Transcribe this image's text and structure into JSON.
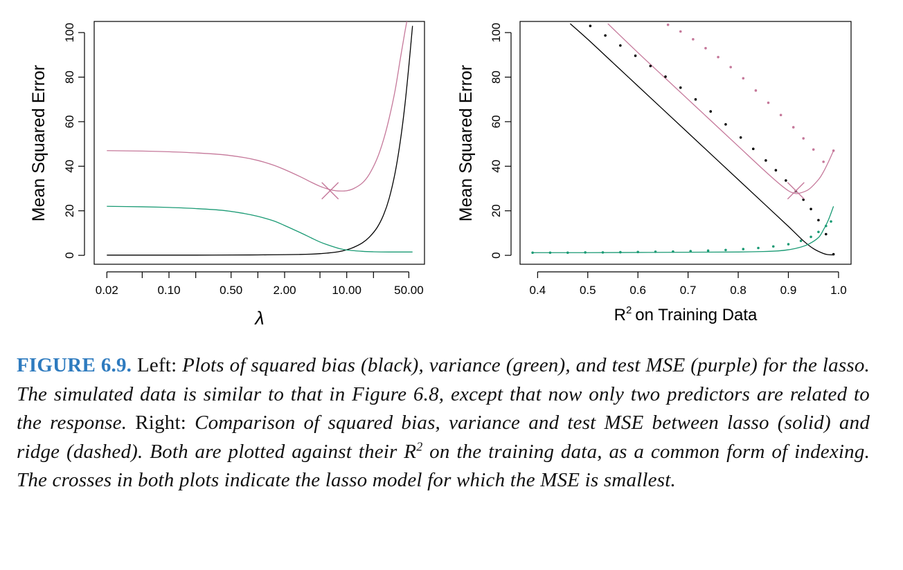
{
  "colors": {
    "bias": "#000000",
    "variance": "#1a9a74",
    "mse": "#c5789a",
    "caption_label": "#2e7bbf"
  },
  "chart_data": [
    {
      "type": "line",
      "panel": "left",
      "xscale": "log",
      "xlabel": "λ",
      "ylabel": "Mean Squared Error",
      "xlim": [
        0.0144,
        75
      ],
      "ylim": [
        -4,
        105
      ],
      "x_ticks": [
        0.02,
        0.05,
        0.1,
        0.2,
        0.5,
        1.0,
        2.0,
        5.0,
        10.0,
        20.0,
        50.0
      ],
      "x_tick_labels": [
        "0.02",
        "",
        "0.10",
        "",
        "0.50",
        "",
        "2.00",
        "",
        "10.00",
        "",
        "50.00"
      ],
      "y_ticks": [
        0,
        20,
        40,
        60,
        80,
        100
      ],
      "y_tick_labels": [
        "0",
        "20",
        "40",
        "60",
        "80",
        "100"
      ],
      "series": [
        {
          "name": "squared bias",
          "color_key": "bias",
          "style": "solid",
          "x": [
            0.02,
            0.05,
            0.1,
            0.2,
            0.5,
            1,
            2,
            3,
            4,
            5,
            6,
            8,
            10,
            12,
            15,
            18,
            22,
            26,
            30,
            35,
            40,
            45,
            50,
            55
          ],
          "y": [
            0.1,
            0.1,
            0.1,
            0.1,
            0.15,
            0.2,
            0.3,
            0.4,
            0.55,
            0.75,
            1.0,
            1.6,
            2.5,
            3.6,
            5.6,
            8.2,
            12.5,
            18.2,
            25.5,
            37.0,
            51.0,
            67.0,
            85.0,
            103.0
          ]
        },
        {
          "name": "variance",
          "color_key": "variance",
          "style": "solid",
          "x": [
            0.02,
            0.05,
            0.1,
            0.2,
            0.4,
            0.7,
            1,
            1.5,
            2,
            3,
            4,
            5,
            6,
            8,
            10,
            15,
            20,
            30,
            55
          ],
          "y": [
            22.0,
            21.8,
            21.5,
            21.0,
            20.2,
            18.8,
            17.5,
            15.5,
            13.4,
            10.2,
            7.8,
            6.0,
            4.8,
            3.2,
            2.4,
            1.8,
            1.6,
            1.5,
            1.5
          ]
        },
        {
          "name": "test MSE",
          "color_key": "mse",
          "style": "solid",
          "x": [
            0.02,
            0.05,
            0.1,
            0.2,
            0.4,
            0.7,
            1,
            1.5,
            2,
            3,
            4,
            5,
            6,
            7,
            8,
            10,
            12,
            15,
            18,
            22,
            26,
            30,
            35,
            40,
            45,
            48
          ],
          "y": [
            47.0,
            46.8,
            46.5,
            46.0,
            45.2,
            43.9,
            42.6,
            40.5,
            38.5,
            35.3,
            32.8,
            31.0,
            29.9,
            29.2,
            28.9,
            29.0,
            30.0,
            32.5,
            36.5,
            43.5,
            52.0,
            61.5,
            74.0,
            88.0,
            100.0,
            106.0
          ]
        }
      ],
      "markers": [
        {
          "type": "cross",
          "x": 6.5,
          "y": 29.0,
          "color_key": "mse",
          "label": "min MSE"
        }
      ]
    },
    {
      "type": "line",
      "panel": "right",
      "xlabel": "on Training Data",
      "xlabel_prefix": "R",
      "xlabel_sup": "2",
      "ylabel": "Mean Squared Error",
      "xlim": [
        0.365,
        1.025
      ],
      "ylim": [
        -4,
        105
      ],
      "x_ticks": [
        0.4,
        0.5,
        0.6,
        0.7,
        0.8,
        0.9,
        1.0
      ],
      "x_tick_labels": [
        "0.4",
        "0.5",
        "0.6",
        "0.7",
        "0.8",
        "0.9",
        "1.0"
      ],
      "y_ticks": [
        0,
        20,
        40,
        60,
        80,
        100
      ],
      "y_tick_labels": [
        "0",
        "20",
        "40",
        "60",
        "80",
        "100"
      ],
      "series": [
        {
          "name": "lasso squared bias",
          "color_key": "bias",
          "style": "solid",
          "x": [
            0.465,
            0.5,
            0.55,
            0.6,
            0.65,
            0.7,
            0.75,
            0.8,
            0.85,
            0.9,
            0.93,
            0.95,
            0.97,
            0.98,
            0.99
          ],
          "y": [
            104.0,
            97.0,
            86.5,
            76.0,
            65.5,
            55.0,
            44.5,
            34.0,
            23.5,
            13.0,
            6.5,
            3.0,
            0.8,
            0.3,
            0.2
          ]
        },
        {
          "name": "lasso variance",
          "color_key": "variance",
          "style": "solid",
          "x": [
            0.39,
            0.45,
            0.5,
            0.6,
            0.7,
            0.8,
            0.85,
            0.88,
            0.9,
            0.92,
            0.94,
            0.96,
            0.97,
            0.98,
            0.99
          ],
          "y": [
            1.2,
            1.2,
            1.2,
            1.3,
            1.4,
            1.5,
            1.7,
            2.0,
            2.5,
            3.4,
            5.0,
            8.0,
            11.5,
            16.0,
            22.0
          ]
        },
        {
          "name": "lasso test MSE",
          "color_key": "mse",
          "style": "solid",
          "x": [
            0.54,
            0.6,
            0.65,
            0.7,
            0.75,
            0.8,
            0.85,
            0.88,
            0.9,
            0.91,
            0.92,
            0.94,
            0.96,
            0.97,
            0.98,
            0.99
          ],
          "y": [
            104.0,
            91.0,
            80.5,
            70.0,
            59.5,
            49.0,
            38.5,
            32.5,
            29.0,
            28.0,
            27.8,
            29.5,
            34.0,
            37.5,
            42.0,
            47.0
          ]
        },
        {
          "name": "ridge squared bias",
          "color_key": "bias",
          "style": "dotted",
          "x": [
            0.505,
            0.535,
            0.565,
            0.595,
            0.625,
            0.655,
            0.685,
            0.715,
            0.745,
            0.775,
            0.805,
            0.83,
            0.855,
            0.875,
            0.895,
            0.915,
            0.93,
            0.945,
            0.96,
            0.975,
            0.99
          ],
          "y": [
            103.0,
            98.7,
            94.2,
            89.6,
            85.0,
            80.2,
            75.3,
            70.0,
            64.6,
            58.8,
            52.9,
            47.8,
            42.6,
            38.2,
            33.6,
            28.8,
            25.0,
            20.8,
            15.8,
            9.5,
            0.5
          ]
        },
        {
          "name": "ridge variance",
          "color_key": "variance",
          "style": "dotted",
          "x": [
            0.39,
            0.425,
            0.46,
            0.495,
            0.53,
            0.565,
            0.6,
            0.635,
            0.67,
            0.705,
            0.74,
            0.775,
            0.81,
            0.84,
            0.87,
            0.9,
            0.925,
            0.945,
            0.96,
            0.975,
            0.985
          ],
          "y": [
            1.2,
            1.2,
            1.2,
            1.3,
            1.3,
            1.4,
            1.5,
            1.6,
            1.7,
            1.9,
            2.1,
            2.4,
            2.8,
            3.3,
            4.0,
            5.0,
            6.5,
            8.3,
            10.5,
            13.2,
            15.2
          ]
        },
        {
          "name": "ridge test MSE",
          "color_key": "mse",
          "style": "dotted",
          "x": [
            0.66,
            0.685,
            0.71,
            0.735,
            0.76,
            0.785,
            0.81,
            0.835,
            0.86,
            0.885,
            0.91,
            0.93,
            0.95,
            0.97,
            0.99
          ],
          "y": [
            103.5,
            100.5,
            97.0,
            93.0,
            89.0,
            84.5,
            79.5,
            74.0,
            68.5,
            63.0,
            57.5,
            52.5,
            47.5,
            42.0,
            47.0
          ]
        }
      ],
      "markers": [
        {
          "type": "cross",
          "x": 0.915,
          "y": 29.0,
          "color_key": "mse",
          "label": "min MSE"
        }
      ]
    }
  ],
  "caption": {
    "figure_label": "FIGURE 6.9.",
    "left_label": "Left:",
    "left_text": "Plots of squared bias (black), variance (green), and test MSE (purple) for the lasso. The simulated data is similar to that in Figure 6.8, except that now only two predictors are related to the response.",
    "right_label": "Right:",
    "right_text_1": "Comparison of squared bias, variance and test MSE between lasso (solid) and ridge (dashed). Both are plotted against their",
    "r_symbol": "R",
    "r_sup": "2",
    "right_text_2": "on the training data, as a common form of indexing. The crosses in both plots indicate the lasso model for which the MSE is smallest."
  }
}
